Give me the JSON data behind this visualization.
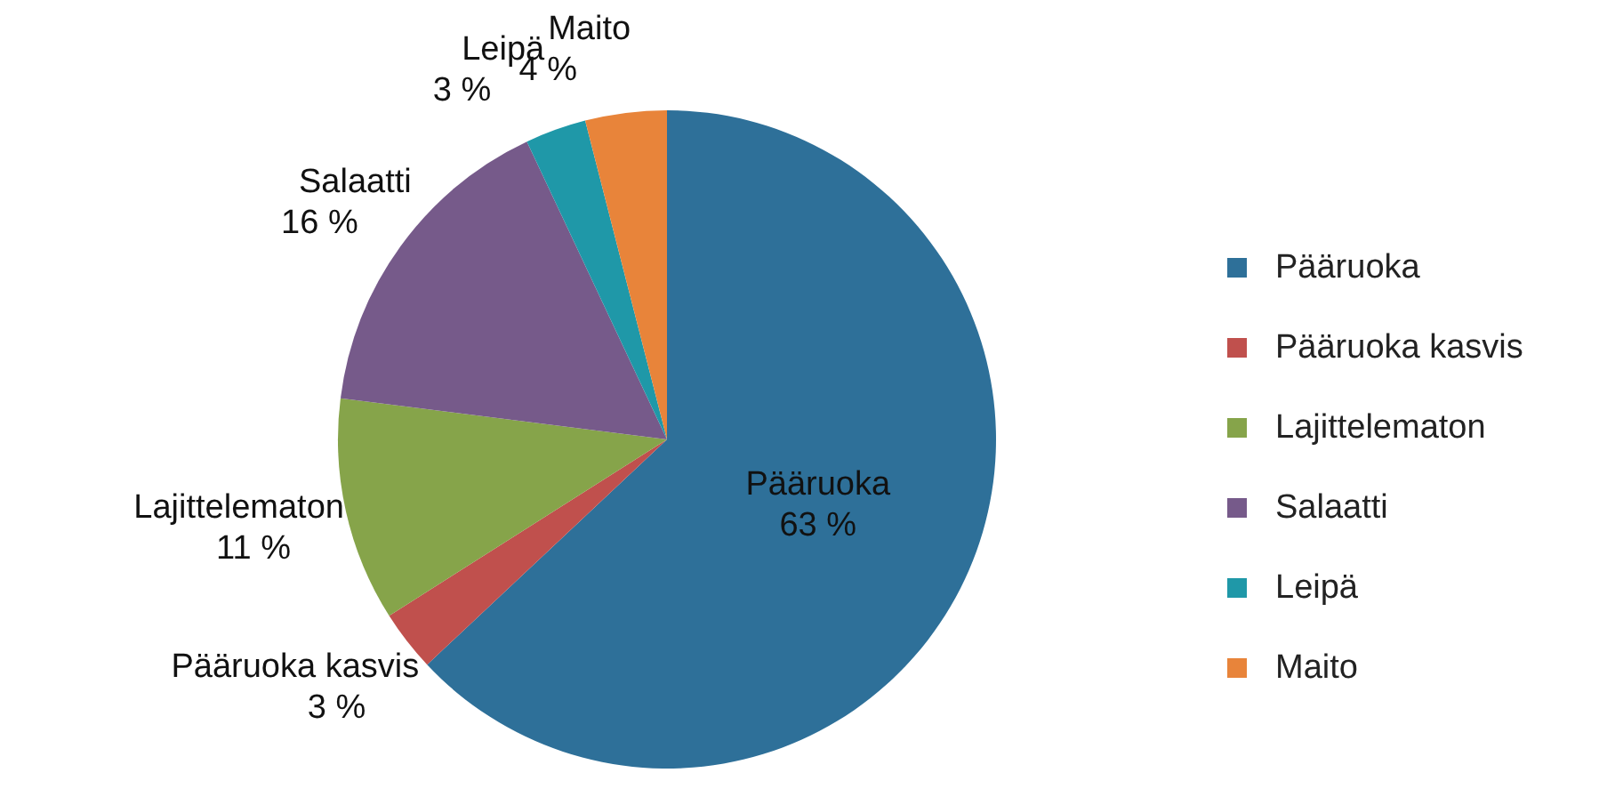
{
  "chart_data": {
    "type": "pie",
    "categories": [
      "Pääruoka",
      "Pääruoka kasvis",
      "Lajittelematon",
      "Salaatti",
      "Leipä",
      "Maito"
    ],
    "values": [
      63,
      3,
      11,
      16,
      3,
      4
    ],
    "value_labels": [
      "63 %",
      "3 %",
      "11 %",
      "16 %",
      "3 %",
      "4 %"
    ],
    "colors": [
      "#2e7099",
      "#c0504d",
      "#86a44a",
      "#765a8a",
      "#1f98a8",
      "#e8843a"
    ],
    "legend": "right"
  }
}
